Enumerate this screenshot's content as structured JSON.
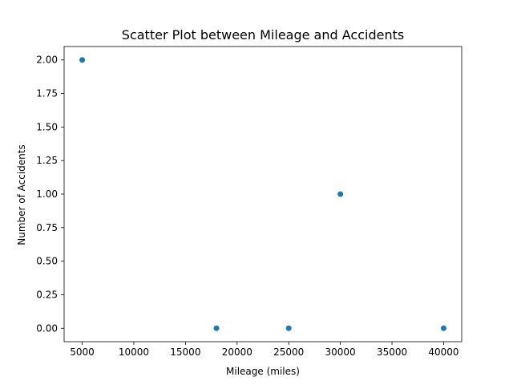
{
  "chart_data": {
    "type": "scatter",
    "title": "Scatter Plot between Mileage and Accidents",
    "xlabel": "Mileage (miles)",
    "ylabel": "Number of Accidents",
    "xlim": [
      3250,
      41750
    ],
    "ylim": [
      -0.1,
      2.1
    ],
    "xticks": [
      5000,
      10000,
      15000,
      20000,
      25000,
      30000,
      35000,
      40000
    ],
    "xtick_labels": [
      "5000",
      "10000",
      "15000",
      "20000",
      "25000",
      "30000",
      "35000",
      "40000"
    ],
    "yticks": [
      0,
      0.25,
      0.5,
      0.75,
      1.0,
      1.25,
      1.5,
      1.75,
      2.0
    ],
    "ytick_labels": [
      "0.00",
      "0.25",
      "0.50",
      "0.75",
      "1.00",
      "1.25",
      "1.50",
      "1.75",
      "2.00"
    ],
    "grid": false,
    "point_color": "#1f77b4",
    "points": [
      {
        "x": 5000,
        "y": 2
      },
      {
        "x": 18000,
        "y": 0
      },
      {
        "x": 25000,
        "y": 0
      },
      {
        "x": 30000,
        "y": 1
      },
      {
        "x": 40000,
        "y": 0
      }
    ]
  }
}
